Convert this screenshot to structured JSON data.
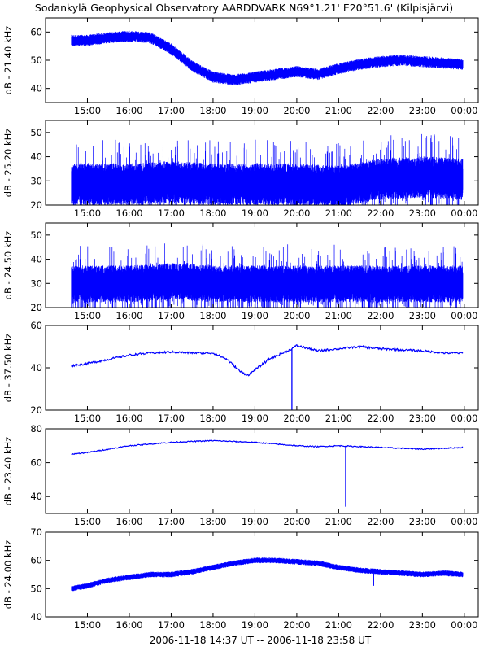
{
  "title": "Sodankylä Geophysical Observatory AARDDVARK N69°1.21' E20°51.6' (Kilpisjärvi)",
  "footer": "2006-11-18 14:37 UT -- 2006-11-18 23:58 UT",
  "line_color": "#0000ff",
  "chart_data": [
    {
      "type": "line",
      "ylabel": "dB - 21.40 kHz",
      "ylim": [
        35,
        65
      ],
      "yticks": [
        40,
        50,
        60
      ],
      "x_ticks": [
        "15:00",
        "16:00",
        "17:00",
        "18:00",
        "19:00",
        "20:00",
        "21:00",
        "22:00",
        "23:00",
        "00:00"
      ],
      "style": "band",
      "series": [
        {
          "x": [
            "14:37",
            "15:00",
            "15:30",
            "16:00",
            "16:30",
            "17:00",
            "17:30",
            "18:00",
            "18:30",
            "19:00",
            "19:30",
            "20:00",
            "20:30",
            "21:00",
            "21:30",
            "22:00",
            "22:30",
            "23:00",
            "23:30",
            "23:58"
          ],
          "y": [
            57,
            57,
            58,
            58.5,
            58,
            54,
            48,
            44,
            43,
            44,
            45,
            46,
            45,
            47,
            48.5,
            49.5,
            50,
            49.5,
            49,
            48.5
          ],
          "noise": 1.8
        }
      ]
    },
    {
      "type": "line",
      "ylabel": "dB - 25.20 kHz",
      "ylim": [
        20,
        55
      ],
      "yticks": [
        20,
        30,
        40,
        50
      ],
      "x_ticks": [
        "15:00",
        "16:00",
        "17:00",
        "18:00",
        "19:00",
        "20:00",
        "21:00",
        "22:00",
        "23:00",
        "00:00"
      ],
      "style": "noise",
      "series": [
        {
          "x": [
            "14:37",
            "15:00",
            "16:00",
            "17:00",
            "18:00",
            "19:00",
            "20:00",
            "21:00",
            "22:00",
            "23:00",
            "23:58"
          ],
          "y": [
            30,
            30,
            30,
            31,
            30,
            30,
            30,
            29,
            32,
            33,
            32
          ],
          "noise": 9
        }
      ]
    },
    {
      "type": "line",
      "ylabel": "dB - 24.50 kHz",
      "ylim": [
        20,
        55
      ],
      "yticks": [
        20,
        30,
        40,
        50
      ],
      "x_ticks": [
        "15:00",
        "16:00",
        "17:00",
        "18:00",
        "19:00",
        "20:00",
        "21:00",
        "22:00",
        "23:00",
        "00:00"
      ],
      "style": "noise",
      "series": [
        {
          "x": [
            "14:37",
            "15:00",
            "16:00",
            "17:00",
            "18:00",
            "19:00",
            "20:00",
            "21:00",
            "22:00",
            "23:00",
            "23:58"
          ],
          "y": [
            31,
            31,
            31,
            32,
            31,
            31,
            31,
            31,
            31,
            31,
            31
          ],
          "noise": 8
        }
      ]
    },
    {
      "type": "line",
      "ylabel": "dB - 37.50 kHz",
      "ylim": [
        20,
        60
      ],
      "yticks": [
        20,
        40,
        60
      ],
      "x_ticks": [
        "15:00",
        "16:00",
        "17:00",
        "18:00",
        "19:00",
        "20:00",
        "21:00",
        "22:00",
        "23:00",
        "00:00"
      ],
      "style": "line",
      "series": [
        {
          "x": [
            "14:37",
            "15:00",
            "15:30",
            "16:00",
            "16:30",
            "17:00",
            "17:30",
            "18:00",
            "18:20",
            "18:40",
            "18:50",
            "19:00",
            "19:20",
            "19:40",
            "19:50",
            "19:55",
            "20:00",
            "20:30",
            "21:00",
            "21:30",
            "22:00",
            "22:30",
            "23:00",
            "23:30",
            "23:58"
          ],
          "y": [
            41,
            42,
            44,
            46,
            47,
            47.5,
            47,
            47,
            44,
            38,
            36.5,
            39,
            44,
            47,
            48.5,
            49.5,
            50.5,
            48,
            49,
            50,
            49,
            48.5,
            48,
            47,
            47
          ],
          "noise": 0.5
        }
      ],
      "spikes": [
        {
          "x": "19:53",
          "y": 20
        }
      ]
    },
    {
      "type": "line",
      "ylabel": "dB - 23.40 kHz",
      "ylim": [
        30,
        80
      ],
      "yticks": [
        40,
        60,
        80
      ],
      "x_ticks": [
        "15:00",
        "16:00",
        "17:00",
        "18:00",
        "19:00",
        "20:00",
        "21:00",
        "22:00",
        "23:00",
        "00:00"
      ],
      "style": "line",
      "series": [
        {
          "x": [
            "14:37",
            "15:00",
            "16:00",
            "17:00",
            "17:30",
            "18:00",
            "18:30",
            "19:00",
            "19:30",
            "20:00",
            "20:30",
            "21:00",
            "21:30",
            "22:00",
            "22:30",
            "23:00",
            "23:30",
            "23:58"
          ],
          "y": [
            65,
            66,
            70,
            72,
            72.5,
            73,
            72.5,
            72,
            71,
            70,
            69.5,
            70,
            69.5,
            69,
            68.5,
            68,
            68.5,
            69
          ],
          "noise": 0.3
        }
      ],
      "spikes": [
        {
          "x": "21:10",
          "y": 34
        }
      ]
    },
    {
      "type": "line",
      "ylabel": "dB - 24.00 kHz",
      "ylim": [
        40,
        70
      ],
      "yticks": [
        40,
        50,
        60,
        70
      ],
      "x_ticks": [
        "15:00",
        "16:00",
        "17:00",
        "18:00",
        "19:00",
        "20:00",
        "21:00",
        "22:00",
        "23:00",
        "00:00"
      ],
      "style": "band",
      "series": [
        {
          "x": [
            "14:37",
            "15:00",
            "15:30",
            "16:00",
            "16:30",
            "17:00",
            "17:30",
            "18:00",
            "18:30",
            "19:00",
            "19:30",
            "20:00",
            "20:30",
            "21:00",
            "21:30",
            "22:00",
            "22:30",
            "23:00",
            "23:30",
            "23:58"
          ],
          "y": [
            50,
            51,
            53,
            54,
            55,
            55,
            56,
            57.5,
            59,
            60,
            60,
            59.5,
            59,
            57.5,
            56.5,
            56,
            55.5,
            55,
            55.5,
            55
          ],
          "noise": 0.9
        }
      ],
      "spikes": [
        {
          "x": "21:50",
          "y": 51
        }
      ]
    }
  ]
}
